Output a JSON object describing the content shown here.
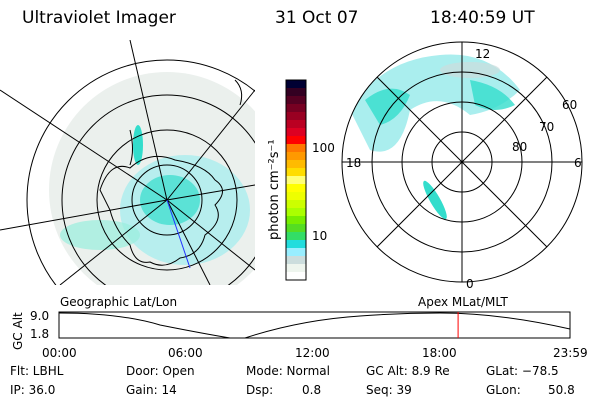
{
  "header": {
    "instrument": "Ultraviolet Imager",
    "date": "31 Oct 07",
    "time": "18:40:59 UT"
  },
  "colorbar": {
    "unit_label": "photon cm⁻²s⁻¹",
    "ticks": [
      "100",
      "10"
    ],
    "colors": [
      "#000033",
      "#330022",
      "#550022",
      "#770022",
      "#990022",
      "#bb0022",
      "#dd0022",
      "#ff0000",
      "#ff7700",
      "#ff9900",
      "#ffbb00",
      "#ffdd00",
      "#ffff77",
      "#ffff00",
      "#eeff00",
      "#ccff00",
      "#aaff00",
      "#77ee00",
      "#55dd22",
      "#33dd66",
      "#22dddd",
      "#99eeff",
      "#ccdddd",
      "#eef5ee",
      "#ffffff"
    ]
  },
  "geo_map": {
    "label": "Geographic Lat/Lon"
  },
  "mag_map": {
    "label": "Apex MLat/MLT",
    "mlt_labels": {
      "top": "12",
      "right": "6",
      "bottom": "0",
      "left": "18"
    },
    "lat_labels": [
      "60",
      "70",
      "80"
    ]
  },
  "altitude_plot": {
    "ylabel": "GC Alt",
    "yticks": [
      "9.0",
      "1.8"
    ],
    "xticks": [
      "00:00",
      "06:00",
      "12:00",
      "18:00",
      "23:59"
    ],
    "current_time_fraction": 0.781,
    "marker_color": "#ff0000"
  },
  "status": {
    "filter": "Flt: LBHL",
    "ip": "IP: 36.0",
    "door": "Door: Open",
    "gain": "Gain: 14",
    "mode": "Mode: Normal",
    "dsp_label": "Dsp:",
    "dsp_value": "0.8",
    "gc_alt": "GC Alt: 8.9 Re",
    "seq": "Seq: 39",
    "glat": "GLat: −78.5",
    "glon_label": "GLon:",
    "glon_value": "50.8"
  },
  "colors": {
    "aurora": "#33ddcc",
    "aurora_light": "#aaeeee",
    "haze": "#dde8e4"
  }
}
